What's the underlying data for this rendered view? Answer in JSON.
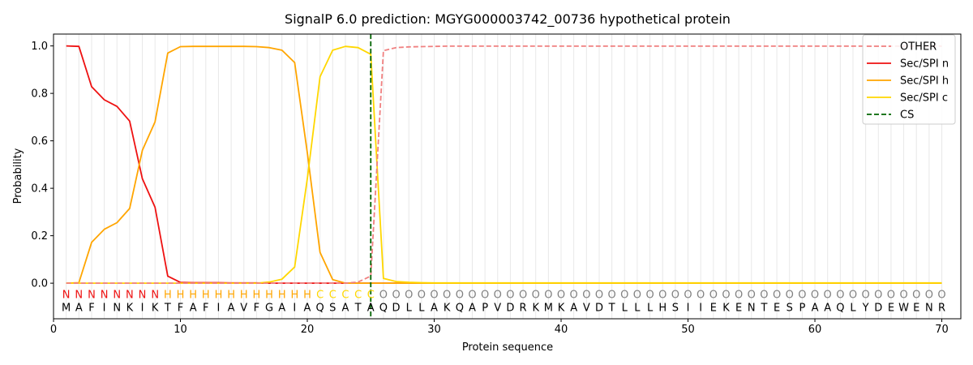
{
  "chart_data": {
    "type": "line",
    "title": "SignalP 6.0 prediction: MGYG000003742_00736 hypothetical protein",
    "xlabel": "Protein sequence",
    "ylabel": "Probability",
    "xlim": [
      0,
      71.5
    ],
    "ylim": [
      -0.15,
      1.05
    ],
    "xticks": [
      0,
      10,
      20,
      30,
      40,
      50,
      60,
      70
    ],
    "yticks": [
      0.0,
      0.2,
      0.4,
      0.6,
      0.8,
      1.0
    ],
    "ytick_labels": [
      "0.0",
      "0.2",
      "0.4",
      "0.6",
      "0.8",
      "1.0"
    ],
    "grid": "vertical lines at each residue",
    "legend_position": "top-right",
    "sequence": [
      "M",
      "A",
      "F",
      "I",
      "N",
      "K",
      "I",
      "K",
      "T",
      "F",
      "A",
      "F",
      "I",
      "A",
      "V",
      "F",
      "G",
      "A",
      "I",
      "A",
      "Q",
      "S",
      "A",
      "T",
      "A",
      "Q",
      "D",
      "L",
      "L",
      "A",
      "K",
      "Q",
      "A",
      "P",
      "V",
      "D",
      "R",
      "K",
      "M",
      "K",
      "A",
      "V",
      "D",
      "T",
      "L",
      "L",
      "L",
      "H",
      "S",
      "I",
      "I",
      "E",
      "K",
      "E",
      "N",
      "T",
      "E",
      "S",
      "P",
      "A",
      "A",
      "Q",
      "L",
      "Y",
      "D",
      "E",
      "W",
      "E",
      "N",
      "R"
    ],
    "labels": [
      "N",
      "N",
      "N",
      "N",
      "N",
      "N",
      "N",
      "N",
      "H",
      "H",
      "H",
      "H",
      "H",
      "H",
      "H",
      "H",
      "H",
      "H",
      "H",
      "H",
      "C",
      "C",
      "C",
      "C",
      "C",
      "O",
      "O",
      "O",
      "O",
      "O",
      "O",
      "O",
      "O",
      "O",
      "O",
      "O",
      "O",
      "O",
      "O",
      "O",
      "O",
      "O",
      "O",
      "O",
      "O",
      "O",
      "O",
      "O",
      "O",
      "O",
      "O",
      "O",
      "O",
      "O",
      "O",
      "O",
      "O",
      "O",
      "O",
      "O",
      "O",
      "O",
      "O",
      "O",
      "O",
      "O",
      "O",
      "O",
      "O",
      "O"
    ],
    "label_colors": {
      "N": "#ee1111",
      "H": "#ffa500",
      "C": "#ffd700",
      "O": "#808080"
    },
    "cs_position": 25,
    "series": [
      {
        "name": "OTHER",
        "color": "#f08080",
        "style": "dashed",
        "values": [
          0.0,
          0.0,
          0.0,
          0.0,
          0.0,
          0.0,
          0.0,
          0.0,
          0.0,
          0.0,
          0.0,
          0.0,
          0.0,
          0.0,
          0.0,
          0.0,
          0.0,
          0.0,
          0.0,
          0.0,
          0.0,
          0.0,
          0.0,
          0.005,
          0.03,
          0.98,
          0.993,
          0.996,
          0.997,
          0.998,
          0.999,
          0.999,
          0.999,
          0.999,
          0.999,
          0.999,
          0.999,
          0.999,
          0.999,
          0.999,
          0.999,
          0.999,
          0.999,
          0.999,
          0.999,
          0.999,
          0.999,
          0.999,
          0.999,
          0.999,
          0.999,
          0.999,
          0.999,
          0.999,
          0.999,
          0.999,
          0.999,
          0.999,
          0.999,
          0.999,
          0.999,
          0.999,
          0.999,
          0.999,
          0.999,
          0.999,
          0.999,
          0.999,
          0.999,
          0.999
        ]
      },
      {
        "name": "Sec/SPI n",
        "color": "#ee1111",
        "style": "solid",
        "values": [
          1.0,
          0.998,
          0.828,
          0.773,
          0.745,
          0.683,
          0.44,
          0.32,
          0.03,
          0.003,
          0.002,
          0.002,
          0.002,
          0.001,
          0.001,
          0.001,
          0.0,
          0.0,
          0.0,
          0.0,
          0.0,
          0.0,
          0.0,
          0.0,
          0.0,
          0.0,
          0.0,
          0.0,
          0.0,
          0.0,
          0.0,
          0.0,
          0.0,
          0.0,
          0.0,
          0.0,
          0.0,
          0.0,
          0.0,
          0.0,
          0.0,
          0.0,
          0.0,
          0.0,
          0.0,
          0.0,
          0.0,
          0.0,
          0.0,
          0.0,
          0.0,
          0.0,
          0.0,
          0.0,
          0.0,
          0.0,
          0.0,
          0.0,
          0.0,
          0.0,
          0.0,
          0.0,
          0.0,
          0.0,
          0.0,
          0.0,
          0.0,
          0.0,
          0.0,
          0.0
        ]
      },
      {
        "name": "Sec/SPI h",
        "color": "#ffa500",
        "style": "solid",
        "values": [
          0.0,
          0.002,
          0.172,
          0.227,
          0.255,
          0.315,
          0.56,
          0.68,
          0.97,
          0.997,
          0.998,
          0.998,
          0.998,
          0.998,
          0.998,
          0.997,
          0.993,
          0.982,
          0.93,
          0.55,
          0.13,
          0.015,
          0.0,
          0.0,
          0.0,
          0.0,
          0.0,
          0.0,
          0.0,
          0.0,
          0.0,
          0.0,
          0.0,
          0.0,
          0.0,
          0.0,
          0.0,
          0.0,
          0.0,
          0.0,
          0.0,
          0.0,
          0.0,
          0.0,
          0.0,
          0.0,
          0.0,
          0.0,
          0.0,
          0.0,
          0.0,
          0.0,
          0.0,
          0.0,
          0.0,
          0.0,
          0.0,
          0.0,
          0.0,
          0.0,
          0.0,
          0.0,
          0.0,
          0.0,
          0.0,
          0.0,
          0.0,
          0.0,
          0.0,
          0.0
        ]
      },
      {
        "name": "Sec/SPI c",
        "color": "#ffd700",
        "style": "solid",
        "values": [
          0.0,
          0.0,
          0.0,
          0.0,
          0.0,
          0.0,
          0.0,
          0.0,
          0.0,
          0.0,
          0.0,
          0.0,
          0.0,
          0.0,
          0.0,
          0.0,
          0.005,
          0.017,
          0.068,
          0.44,
          0.87,
          0.982,
          0.998,
          0.993,
          0.965,
          0.02,
          0.007,
          0.004,
          0.002,
          0.001,
          0.001,
          0.001,
          0.001,
          0.001,
          0.001,
          0.001,
          0.001,
          0.001,
          0.001,
          0.001,
          0.001,
          0.001,
          0.001,
          0.001,
          0.001,
          0.001,
          0.001,
          0.001,
          0.001,
          0.001,
          0.001,
          0.001,
          0.001,
          0.001,
          0.001,
          0.001,
          0.001,
          0.001,
          0.001,
          0.001,
          0.001,
          0.001,
          0.001,
          0.001,
          0.001,
          0.001,
          0.001,
          0.001,
          0.001,
          0.001
        ]
      }
    ],
    "cs_marker": {
      "name": "CS",
      "color": "#006400",
      "style": "dashed"
    }
  }
}
